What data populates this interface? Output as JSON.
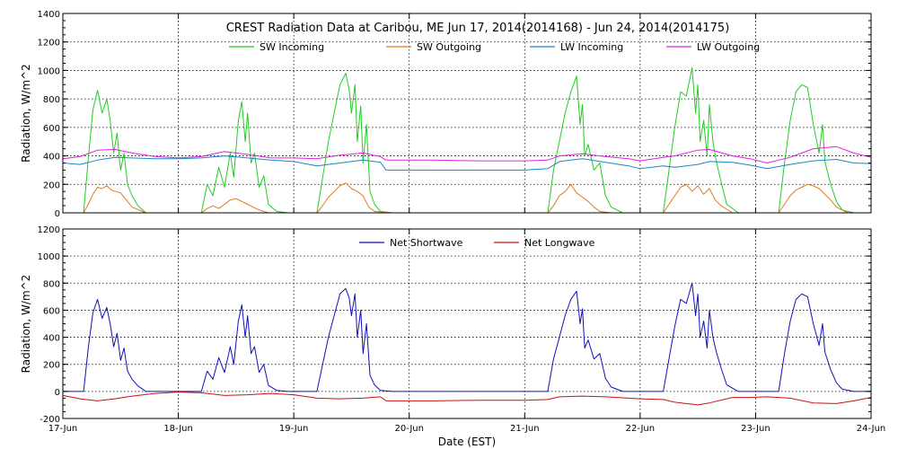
{
  "chart_data": [
    {
      "type": "line",
      "title": "CREST Radiation Data at Caribou, ME   Jun 17, 2014(2014168) - Jun 24, 2014(2014175)",
      "xlabel": "",
      "ylabel": "Radiation, W/m^2",
      "xlim": [
        0,
        7
      ],
      "ylim": [
        0,
        1400
      ],
      "yticks": [
        0,
        200,
        400,
        600,
        800,
        1000,
        1200,
        1400
      ],
      "ytick_labels": [
        "0",
        "200",
        "400",
        "600",
        "800",
        "1000",
        "1200",
        "1400"
      ],
      "grid": true,
      "legend_position": "top",
      "series": [
        {
          "name": "SW Incoming",
          "color": "#22cc22",
          "x": [
            0.0,
            0.18,
            0.22,
            0.26,
            0.3,
            0.34,
            0.38,
            0.41,
            0.44,
            0.47,
            0.5,
            0.53,
            0.56,
            0.6,
            0.65,
            0.72,
            0.8,
            0.9,
            1.2,
            1.25,
            1.3,
            1.35,
            1.4,
            1.45,
            1.48,
            1.52,
            1.55,
            1.58,
            1.6,
            1.63,
            1.66,
            1.7,
            1.74,
            1.78,
            1.85,
            1.95,
            2.2,
            2.25,
            2.3,
            2.35,
            2.4,
            2.45,
            2.48,
            2.5,
            2.53,
            2.55,
            2.58,
            2.6,
            2.63,
            2.66,
            2.7,
            2.75,
            2.85,
            3.0,
            3.4,
            4.2,
            4.25,
            4.3,
            4.35,
            4.4,
            4.45,
            4.48,
            4.5,
            4.52,
            4.55,
            4.6,
            4.65,
            4.7,
            4.75,
            4.85,
            5.2,
            5.25,
            5.3,
            5.35,
            5.4,
            5.45,
            5.48,
            5.5,
            5.52,
            5.55,
            5.58,
            5.6,
            5.63,
            5.66,
            5.7,
            5.75,
            5.85,
            6.2,
            6.25,
            6.3,
            6.35,
            6.4,
            6.45,
            6.5,
            6.55,
            6.58,
            6.6,
            6.65,
            6.7,
            6.75,
            6.85,
            7.0
          ],
          "y": [
            0,
            0,
            380,
            720,
            860,
            700,
            800,
            650,
            420,
            560,
            300,
            420,
            200,
            120,
            50,
            0,
            0,
            0,
            0,
            200,
            120,
            320,
            180,
            420,
            250,
            650,
            780,
            500,
            700,
            350,
            420,
            180,
            260,
            60,
            10,
            0,
            0,
            250,
            500,
            700,
            900,
            980,
            860,
            700,
            900,
            500,
            750,
            350,
            620,
            150,
            60,
            10,
            0,
            0,
            0,
            0,
            300,
            500,
            700,
            850,
            960,
            620,
            760,
            400,
            480,
            300,
            350,
            120,
            40,
            0,
            0,
            300,
            600,
            850,
            820,
            1020,
            700,
            900,
            500,
            650,
            400,
            760,
            500,
            360,
            220,
            60,
            0,
            0,
            350,
            650,
            850,
            900,
            880,
            620,
            420,
            620,
            360,
            200,
            80,
            20,
            0,
            0
          ]
        },
        {
          "name": "SW Outgoing",
          "color": "#e07a14",
          "x": [
            0.0,
            0.18,
            0.22,
            0.26,
            0.3,
            0.34,
            0.38,
            0.42,
            0.46,
            0.5,
            0.55,
            0.6,
            0.72,
            1.2,
            1.25,
            1.3,
            1.35,
            1.4,
            1.45,
            1.5,
            1.55,
            1.6,
            1.65,
            1.7,
            1.78,
            1.95,
            2.2,
            2.25,
            2.3,
            2.35,
            2.4,
            2.45,
            2.5,
            2.55,
            2.6,
            2.65,
            2.7,
            2.85,
            4.2,
            4.25,
            4.3,
            4.35,
            4.4,
            4.45,
            4.5,
            4.55,
            4.6,
            4.65,
            4.75,
            5.2,
            5.25,
            5.3,
            5.35,
            5.4,
            5.45,
            5.5,
            5.55,
            5.6,
            5.65,
            5.7,
            5.8,
            6.2,
            6.25,
            6.3,
            6.35,
            6.4,
            6.45,
            6.5,
            6.55,
            6.6,
            6.65,
            6.7,
            6.8,
            7.0
          ],
          "y": [
            0,
            0,
            60,
            130,
            180,
            170,
            190,
            160,
            150,
            140,
            90,
            40,
            0,
            0,
            30,
            50,
            30,
            60,
            90,
            100,
            80,
            60,
            40,
            20,
            0,
            0,
            0,
            50,
            110,
            150,
            190,
            210,
            170,
            150,
            120,
            40,
            10,
            0,
            0,
            50,
            120,
            150,
            200,
            140,
            110,
            80,
            40,
            10,
            0,
            0,
            60,
            120,
            180,
            200,
            150,
            190,
            130,
            170,
            90,
            50,
            0,
            0,
            60,
            120,
            160,
            180,
            200,
            190,
            170,
            130,
            90,
            40,
            0,
            0
          ]
        },
        {
          "name": "LW Incoming",
          "color": "#1a86c8",
          "x": [
            0.0,
            0.15,
            0.3,
            0.45,
            0.6,
            0.8,
            1.0,
            1.2,
            1.4,
            1.6,
            1.8,
            2.0,
            2.2,
            2.4,
            2.6,
            2.75,
            2.8,
            3.2,
            3.6,
            4.0,
            4.2,
            4.3,
            4.5,
            4.7,
            4.9,
            5.0,
            5.2,
            5.3,
            5.5,
            5.6,
            5.8,
            5.95,
            6.1,
            6.3,
            6.5,
            6.7,
            6.85,
            7.0
          ],
          "y": [
            350,
            340,
            370,
            390,
            385,
            380,
            380,
            385,
            400,
            385,
            370,
            360,
            330,
            350,
            370,
            355,
            300,
            300,
            300,
            300,
            310,
            360,
            380,
            355,
            330,
            310,
            330,
            320,
            340,
            360,
            355,
            335,
            310,
            340,
            365,
            375,
            350,
            345
          ]
        },
        {
          "name": "LW Outgoing",
          "color": "#dd22dd",
          "x": [
            0.0,
            0.15,
            0.3,
            0.45,
            0.6,
            0.8,
            1.0,
            1.2,
            1.4,
            1.6,
            1.8,
            2.0,
            2.2,
            2.4,
            2.6,
            2.75,
            2.8,
            3.2,
            3.6,
            4.0,
            4.2,
            4.3,
            4.5,
            4.7,
            4.9,
            5.0,
            5.2,
            5.3,
            5.5,
            5.6,
            5.8,
            5.95,
            6.1,
            6.3,
            6.5,
            6.7,
            6.85,
            7.0
          ],
          "y": [
            380,
            395,
            440,
            445,
            420,
            395,
            385,
            395,
            430,
            410,
            385,
            385,
            380,
            405,
            420,
            395,
            370,
            370,
            365,
            365,
            370,
            400,
            415,
            395,
            380,
            365,
            390,
            400,
            440,
            445,
            400,
            380,
            350,
            390,
            450,
            465,
            420,
            390
          ]
        }
      ]
    },
    {
      "type": "line",
      "title": "",
      "xlabel": "Date (EST)",
      "ylabel": "Radiation, W/m^2",
      "xlim": [
        0,
        7
      ],
      "ylim": [
        -200,
        1200
      ],
      "yticks": [
        -200,
        0,
        200,
        400,
        600,
        800,
        1000,
        1200
      ],
      "ytick_labels": [
        "-200",
        "0",
        "200",
        "400",
        "600",
        "800",
        "1000",
        "1200"
      ],
      "xtick_labels": [
        "17-Jun",
        "18-Jun",
        "19-Jun",
        "20-Jun",
        "21-Jun",
        "22-Jun",
        "23-Jun",
        "24-Jun"
      ],
      "grid": true,
      "legend_position": "top",
      "series": [
        {
          "name": "Net Shortwave",
          "color": "#1010bb",
          "x": [
            0.0,
            0.18,
            0.22,
            0.26,
            0.3,
            0.34,
            0.38,
            0.41,
            0.44,
            0.47,
            0.5,
            0.53,
            0.56,
            0.6,
            0.65,
            0.72,
            0.8,
            0.9,
            1.2,
            1.25,
            1.3,
            1.35,
            1.4,
            1.45,
            1.48,
            1.52,
            1.55,
            1.58,
            1.6,
            1.63,
            1.66,
            1.7,
            1.74,
            1.78,
            1.85,
            1.95,
            2.2,
            2.25,
            2.3,
            2.35,
            2.4,
            2.45,
            2.48,
            2.5,
            2.53,
            2.55,
            2.58,
            2.6,
            2.63,
            2.66,
            2.7,
            2.75,
            2.85,
            3.0,
            3.4,
            4.2,
            4.25,
            4.3,
            4.35,
            4.4,
            4.45,
            4.48,
            4.5,
            4.52,
            4.55,
            4.6,
            4.65,
            4.7,
            4.75,
            4.85,
            5.2,
            5.25,
            5.3,
            5.35,
            5.4,
            5.45,
            5.48,
            5.5,
            5.52,
            5.55,
            5.58,
            5.6,
            5.63,
            5.66,
            5.7,
            5.75,
            5.85,
            6.2,
            6.25,
            6.3,
            6.35,
            6.4,
            6.45,
            6.5,
            6.55,
            6.58,
            6.6,
            6.65,
            6.7,
            6.75,
            6.85,
            7.0
          ],
          "y": [
            0,
            0,
            320,
            580,
            680,
            540,
            620,
            500,
            330,
            430,
            230,
            320,
            150,
            90,
            40,
            0,
            0,
            0,
            0,
            150,
            90,
            250,
            140,
            330,
            200,
            520,
            640,
            400,
            560,
            280,
            330,
            140,
            200,
            45,
            8,
            0,
            0,
            200,
            400,
            560,
            720,
            760,
            690,
            560,
            720,
            400,
            600,
            280,
            500,
            120,
            48,
            8,
            0,
            0,
            0,
            0,
            240,
            400,
            560,
            680,
            740,
            500,
            610,
            320,
            380,
            240,
            280,
            95,
            32,
            0,
            0,
            240,
            480,
            680,
            650,
            800,
            560,
            720,
            400,
            520,
            320,
            600,
            400,
            290,
            175,
            48,
            0,
            0,
            280,
            520,
            680,
            720,
            700,
            500,
            340,
            500,
            290,
            160,
            64,
            16,
            0,
            0
          ]
        },
        {
          "name": "Net Longwave",
          "color": "#cc1111",
          "x": [
            0.0,
            0.15,
            0.3,
            0.45,
            0.6,
            0.8,
            1.0,
            1.2,
            1.4,
            1.6,
            1.8,
            2.0,
            2.2,
            2.4,
            2.6,
            2.75,
            2.8,
            3.2,
            3.6,
            4.0,
            4.2,
            4.3,
            4.5,
            4.7,
            4.9,
            5.0,
            5.2,
            5.3,
            5.5,
            5.6,
            5.8,
            5.95,
            6.1,
            6.3,
            6.5,
            6.7,
            6.85,
            7.0
          ],
          "y": [
            -30,
            -55,
            -70,
            -55,
            -35,
            -15,
            -5,
            -10,
            -30,
            -25,
            -15,
            -25,
            -50,
            -55,
            -50,
            -40,
            -70,
            -70,
            -65,
            -65,
            -60,
            -40,
            -35,
            -40,
            -50,
            -55,
            -60,
            -80,
            -100,
            -85,
            -45,
            -45,
            -40,
            -50,
            -85,
            -90,
            -70,
            -45
          ]
        }
      ]
    }
  ]
}
